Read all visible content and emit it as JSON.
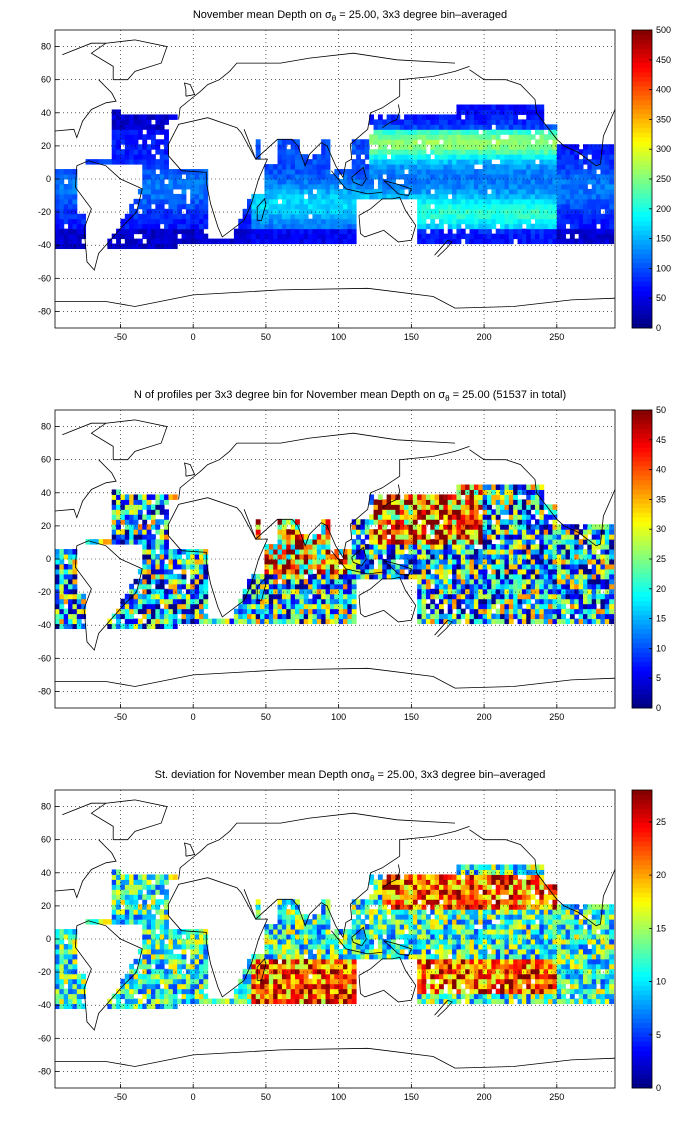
{
  "chart_data": [
    {
      "type": "heatmap",
      "title_prefix": "November mean Depth on ",
      "title_suffix": " = 25.00, 3x3 degree bin–averaged",
      "sigma_symbol": "σ",
      "sigma_subscript": "θ",
      "xlim": [
        -95,
        290
      ],
      "ylim": [
        -90,
        90
      ],
      "xticks": [
        -50,
        0,
        50,
        100,
        150,
        200,
        250
      ],
      "yticks": [
        80,
        60,
        40,
        20,
        0,
        -20,
        -40,
        -60,
        -80
      ],
      "colorbar": {
        "min": 0,
        "max": 500,
        "ticks": [
          0,
          50,
          100,
          150,
          200,
          250,
          300,
          350,
          400,
          450,
          500
        ]
      },
      "field": "depth",
      "grid": "dotted"
    },
    {
      "type": "heatmap",
      "title_prefix": "N of profiles per 3x3 degree bin for November mean Depth on ",
      "title_suffix": " = 25.00 (51537 in total)",
      "sigma_symbol": "σ",
      "sigma_subscript": "θ",
      "xlim": [
        -95,
        290
      ],
      "ylim": [
        -90,
        90
      ],
      "xticks": [
        -50,
        0,
        50,
        100,
        150,
        200,
        250
      ],
      "yticks": [
        80,
        60,
        40,
        20,
        0,
        -20,
        -40,
        -60,
        -80
      ],
      "colorbar": {
        "min": 0,
        "max": 50,
        "ticks": [
          0,
          5,
          10,
          15,
          20,
          25,
          30,
          35,
          40,
          45,
          50
        ]
      },
      "field": "count",
      "grid": "dotted"
    },
    {
      "type": "heatmap",
      "title_prefix": "St. deviation for November mean Depth on",
      "title_suffix": " = 25.00, 3x3 degree bin–averaged",
      "sigma_symbol": "σ",
      "sigma_subscript": "θ",
      "xlim": [
        -95,
        290
      ],
      "ylim": [
        -90,
        90
      ],
      "xticks": [
        -50,
        0,
        50,
        100,
        150,
        200,
        250
      ],
      "yticks": [
        80,
        60,
        40,
        20,
        0,
        -20,
        -40,
        -60,
        -80
      ],
      "colorbar": {
        "min": 0,
        "max": 28,
        "ticks": [
          0,
          5,
          10,
          15,
          20,
          25
        ]
      },
      "field": "std",
      "grid": "dotted"
    }
  ]
}
